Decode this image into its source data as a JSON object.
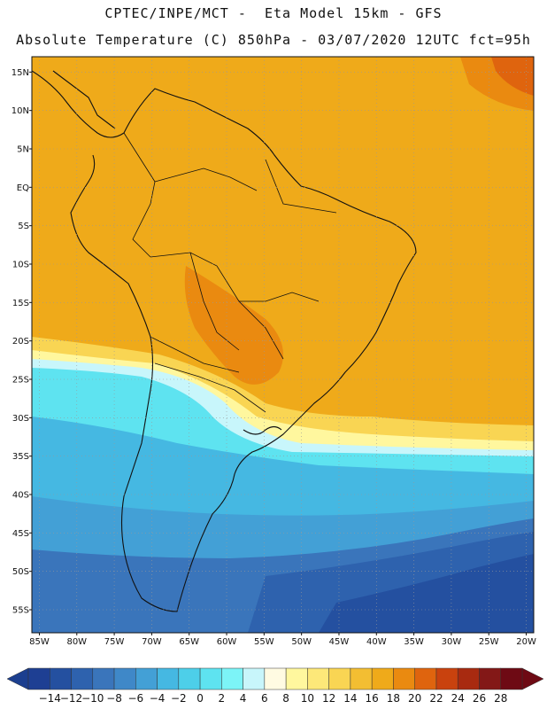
{
  "header": {
    "line1": "CPTEC/INPE/MCT -  Eta Model 15km - GFS",
    "line2": "Absolute Temperature (C) 850hPa - 03/07/2020 12UTC fct=95h"
  },
  "map": {
    "lon_range": [
      -86,
      -19
    ],
    "lat_range": [
      -58,
      17
    ],
    "lat_labels": [
      "15N",
      "10N",
      "5N",
      "EQ",
      "5S",
      "10S",
      "15S",
      "20S",
      "25S",
      "30S",
      "35S",
      "40S",
      "45S",
      "50S",
      "55S"
    ],
    "lon_labels": [
      "85W",
      "80W",
      "75W",
      "70W",
      "65W",
      "60W",
      "55W",
      "50W",
      "45W",
      "40W",
      "35W",
      "30W",
      "25W",
      "20W"
    ],
    "grid": "dotted"
  },
  "colorbar": {
    "labels": [
      "-14",
      "-12",
      "-10",
      "-8",
      "-6",
      "-4",
      "-2",
      "0",
      "2",
      "4",
      "6",
      "8",
      "10",
      "12",
      "14",
      "16",
      "18",
      "20",
      "22",
      "24",
      "26",
      "28"
    ],
    "low_color": "#1c3f8f",
    "high_color": "#6e0a14",
    "colors": [
      "#1e3f93",
      "#2450a0",
      "#2e62ae",
      "#3a75bb",
      "#3f88c8",
      "#43a0d6",
      "#45b8e2",
      "#4dcfe9",
      "#5ee3f0",
      "#7cf4f7",
      "#c8f6fb",
      "#fffbe2",
      "#fff79e",
      "#fde879",
      "#f9d553",
      "#f3be32",
      "#efaa1a",
      "#ea8a10",
      "#df640e",
      "#c9420e",
      "#a82a10",
      "#831817",
      "#6e0a14"
    ]
  }
}
